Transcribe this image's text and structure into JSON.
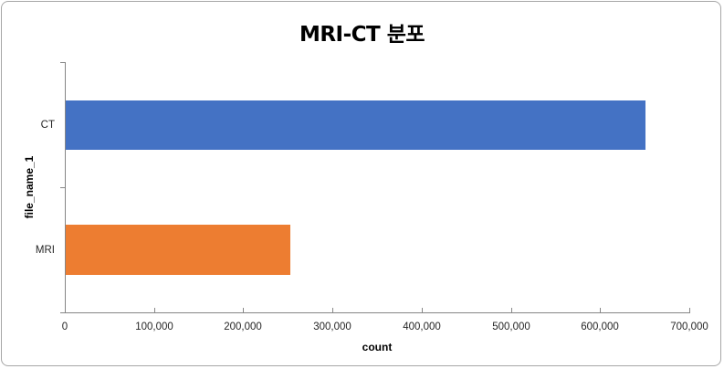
{
  "chart_data": {
    "type": "bar",
    "orientation": "horizontal",
    "title": "MRI-CT 분포",
    "xlabel": "count",
    "ylabel": "file_name_1",
    "categories": [
      "CT",
      "MRI"
    ],
    "values": [
      650000,
      252000
    ],
    "colors": [
      "#4472c4",
      "#ed7d31"
    ],
    "xlim": [
      0,
      700000
    ],
    "x_ticks": [
      "0",
      "100,000",
      "200,000",
      "300,000",
      "400,000",
      "500,000",
      "600,000",
      "700,000"
    ],
    "grid": false,
    "legend": null
  },
  "chart": {
    "title": "MRI-CT 분포",
    "xlabel": "count",
    "ylabel": "file_name_1",
    "categories": [
      {
        "label": "CT",
        "value": 650000,
        "color": "#4472c4"
      },
      {
        "label": "MRI",
        "value": 252000,
        "color": "#ed7d31"
      }
    ],
    "x_ticks": [
      "0",
      "100,000",
      "200,000",
      "300,000",
      "400,000",
      "500,000",
      "600,000",
      "700,000"
    ]
  }
}
